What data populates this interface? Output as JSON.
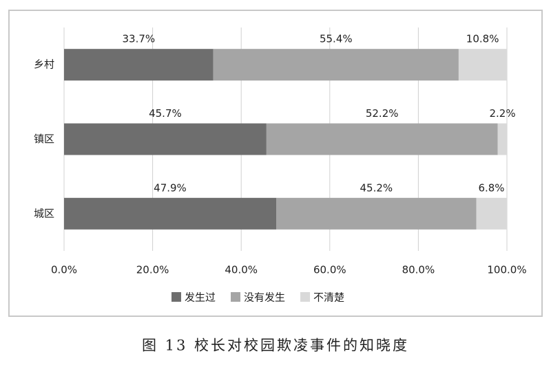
{
  "chart_data": {
    "type": "stacked-bar-horizontal",
    "caption": "图 13  校长对校园欺凌事件的知晓度",
    "categories": [
      "乡村",
      "镇区",
      "城区"
    ],
    "series": [
      {
        "name": "发生过",
        "color": "#6e6e6e",
        "values": [
          33.7,
          45.7,
          47.9
        ],
        "value_labels": [
          "33.7%",
          "45.7%",
          "47.9%"
        ]
      },
      {
        "name": "没有发生",
        "color": "#a5a5a5",
        "values": [
          55.4,
          52.2,
          45.2
        ],
        "value_labels": [
          "55.4%",
          "52.2%",
          "45.2%"
        ]
      },
      {
        "name": "不清楚",
        "color": "#d9d9d9",
        "values": [
          10.8,
          2.2,
          6.8
        ],
        "value_labels": [
          "10.8%",
          "2.2%",
          "6.8%"
        ]
      }
    ],
    "xlim": [
      0,
      100
    ],
    "xticks": [
      {
        "value": 0,
        "label": "0.0%"
      },
      {
        "value": 20,
        "label": "20.0%"
      },
      {
        "value": 40,
        "label": "40.0%"
      },
      {
        "value": 60,
        "label": "60.0%"
      },
      {
        "value": 80,
        "label": "80.0%"
      },
      {
        "value": 100,
        "label": "100.0%"
      }
    ],
    "grid": true,
    "legend": "bottom"
  }
}
